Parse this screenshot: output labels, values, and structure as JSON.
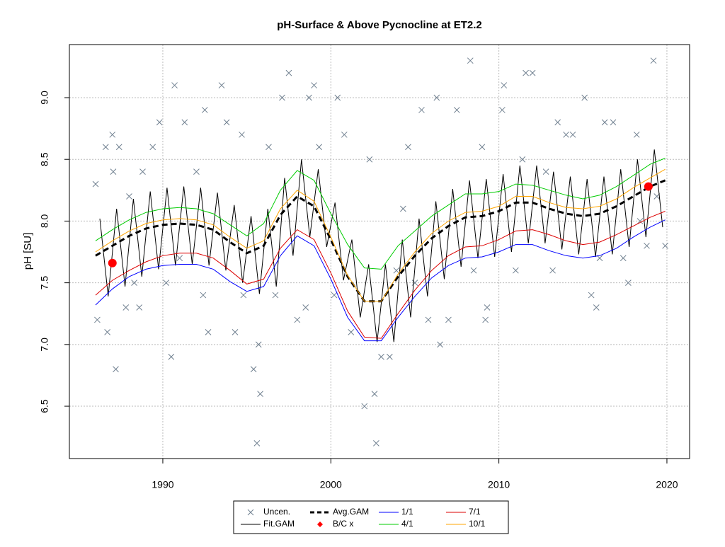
{
  "chart_data": {
    "type": "line",
    "title": "pH-Surface & Above Pycnocline at ET2.2",
    "y_label": "pH [SU]",
    "xlim": [
      1984.44,
      2021.35
    ],
    "ylim": [
      6.076,
      9.43
    ],
    "xticks": [
      1990,
      2000,
      2010,
      2020
    ],
    "yticks": [
      6.5,
      {
        "value": 7,
        "label": "7.0"
      },
      7.5,
      {
        "value": 8,
        "label": "8.0"
      },
      8.5,
      {
        "value": 9,
        "label": "9.0"
      }
    ],
    "grid": true,
    "legend": "bottom",
    "x": [
      1986,
      1987,
      1988,
      1989,
      1990,
      1991,
      1992,
      1993,
      1994,
      1995,
      1996,
      1997,
      1998,
      1999,
      2000,
      2001,
      2002,
      2003,
      2004,
      2005,
      2006,
      2007,
      2008,
      2009,
      2010,
      2011,
      2012,
      2013,
      2014,
      2015,
      2016,
      2017,
      2018,
      2019,
      2019.9
    ],
    "series": [
      {
        "name": "Uncen.",
        "color": "#708090",
        "marker": "x",
        "x": [
          1986.0,
          1986.1,
          1986.6,
          1986.7,
          1987.0,
          1987.05,
          1987.2,
          1987.4,
          1987.8,
          1988.0,
          1988.3,
          1988.8,
          1989.4,
          1989.8,
          1990.5,
          1990.7,
          1991.0,
          1991.3,
          1992.0,
          1992.5,
          1992.7,
          1993.5,
          1993.8,
          1994.3,
          1994.7,
          1995.6,
          1995.4,
          1995.7,
          1995.8,
          1996.3,
          1997.1,
          1997.5,
          1998.0,
          1998.5,
          1998.7,
          1999.0,
          1999.3,
          2000.4,
          2000.8,
          2001.2,
          2002.0,
          2002.3,
          2002.6,
          2002.7,
          2003.0,
          2003.5,
          2004.3,
          2004.6,
          2005.4,
          2005.8,
          2006.3,
          2006.5,
          2007.0,
          2007.5,
          2008.3,
          2009.0,
          2009.3,
          2009.2,
          2010.2,
          2010.3,
          2011.4,
          2011.6,
          2012.0,
          2012.8,
          2013.5,
          2014.0,
          2014.4,
          2015.1,
          2015.5,
          2015.8,
          2016.3,
          2016.8,
          2017.4,
          2017.7,
          2018.2,
          2018.8,
          2019.2,
          2019.4,
          2019.9,
          1988.6,
          1990.2,
          1992.4,
          1994.8,
          1996.7,
          2000.2,
          2003.9,
          2005.0,
          2008.5,
          2011.0,
          2013.2,
          2016.0,
          2018.4
        ],
        "values": [
          8.3,
          7.2,
          8.6,
          7.1,
          8.7,
          8.4,
          6.8,
          8.6,
          7.3,
          8.2,
          7.5,
          8.4,
          8.6,
          8.8,
          6.9,
          9.1,
          7.7,
          8.8,
          8.4,
          8.9,
          7.1,
          9.1,
          8.8,
          7.1,
          8.7,
          6.2,
          6.8,
          7.0,
          6.6,
          8.6,
          9.0,
          9.2,
          7.2,
          7.3,
          9.0,
          9.1,
          8.6,
          9.0,
          8.7,
          7.1,
          6.5,
          8.5,
          6.6,
          6.2,
          6.9,
          6.9,
          8.1,
          8.6,
          8.9,
          7.2,
          9.0,
          7.0,
          7.2,
          8.9,
          9.3,
          8.6,
          7.3,
          7.2,
          8.9,
          9.1,
          8.5,
          9.2,
          9.2,
          8.4,
          8.8,
          8.7,
          8.7,
          9.0,
          7.4,
          7.3,
          8.8,
          8.8,
          7.7,
          7.5,
          8.7,
          7.8,
          9.3,
          8.2,
          7.8,
          7.3,
          7.5,
          7.4,
          7.4,
          7.4,
          7.4,
          7.6,
          7.5,
          7.6,
          7.6,
          7.6,
          7.7,
          8.0
        ]
      },
      {
        "name": "Fit.GAM",
        "color": "#000000",
        "x": [
          1986.25,
          1986.75,
          1987.25,
          1987.75,
          1988.25,
          1988.75,
          1989.25,
          1989.75,
          1990.25,
          1990.75,
          1991.25,
          1991.75,
          1992.25,
          1992.75,
          1993.25,
          1993.75,
          1994.25,
          1994.75,
          1995.25,
          1995.75,
          1996.25,
          1996.75,
          1997.25,
          1997.75,
          1998.25,
          1998.75,
          1999.25,
          1999.75,
          2000.25,
          2000.75,
          2001.25,
          2001.75,
          2002.25,
          2002.75,
          2003.25,
          2003.75,
          2004.25,
          2004.75,
          2005.25,
          2005.75,
          2006.25,
          2006.75,
          2007.25,
          2007.75,
          2008.25,
          2008.75,
          2009.25,
          2009.75,
          2010.25,
          2010.75,
          2011.25,
          2011.75,
          2012.25,
          2012.75,
          2013.25,
          2013.75,
          2014.25,
          2014.75,
          2015.25,
          2015.75,
          2016.25,
          2016.75,
          2017.25,
          2017.75,
          2018.25,
          2018.75,
          2019.25,
          2019.75
        ],
        "values": [
          8.02,
          7.39,
          8.1,
          7.47,
          8.18,
          7.55,
          8.24,
          7.61,
          8.27,
          7.64,
          8.28,
          7.65,
          8.27,
          7.64,
          8.23,
          7.6,
          8.13,
          7.5,
          8.04,
          7.41,
          8.1,
          7.47,
          8.35,
          7.72,
          8.5,
          7.87,
          8.42,
          7.79,
          8.15,
          7.52,
          7.85,
          7.22,
          7.65,
          7.02,
          7.65,
          7.02,
          7.85,
          7.22,
          8.02,
          7.39,
          8.16,
          7.53,
          8.26,
          7.63,
          8.33,
          7.7,
          8.34,
          7.71,
          8.38,
          7.75,
          8.45,
          7.82,
          8.45,
          7.82,
          8.4,
          7.77,
          8.36,
          7.73,
          8.34,
          7.71,
          8.36,
          7.73,
          8.42,
          7.79,
          8.5,
          7.87,
          8.58,
          7.95
        ]
      },
      {
        "name": "Avg.GAM",
        "color": "#000000",
        "dashed": true,
        "width": 3,
        "values": [
          7.72,
          7.8,
          7.88,
          7.94,
          7.97,
          7.98,
          7.97,
          7.93,
          7.83,
          7.74,
          7.8,
          8.05,
          8.2,
          8.12,
          7.85,
          7.55,
          7.35,
          7.35,
          7.55,
          7.72,
          7.86,
          7.96,
          8.03,
          8.04,
          8.08,
          8.15,
          8.15,
          8.1,
          8.06,
          8.04,
          8.06,
          8.12,
          8.2,
          8.28,
          8.33
        ]
      },
      {
        "name": "B/C x",
        "color": "#ff0000",
        "marker": "dot",
        "x": [
          1987.0,
          2018.9
        ],
        "values": [
          7.66,
          8.28
        ]
      },
      {
        "name": "1/1",
        "color": "#0000ff",
        "values": [
          7.32,
          7.45,
          7.55,
          7.61,
          7.64,
          7.65,
          7.65,
          7.61,
          7.51,
          7.43,
          7.47,
          7.72,
          7.88,
          7.8,
          7.53,
          7.22,
          7.03,
          7.03,
          7.22,
          7.39,
          7.54,
          7.64,
          7.7,
          7.71,
          7.75,
          7.81,
          7.81,
          7.76,
          7.72,
          7.7,
          7.72,
          7.78,
          7.87,
          7.95,
          8.01
        ]
      },
      {
        "name": "4/1",
        "color": "#00cc00",
        "values": [
          7.84,
          7.93,
          8.01,
          8.07,
          8.1,
          8.11,
          8.1,
          8.06,
          7.97,
          7.88,
          7.98,
          8.25,
          8.41,
          8.33,
          8.06,
          7.81,
          7.62,
          7.61,
          7.8,
          7.92,
          8.04,
          8.13,
          8.22,
          8.22,
          8.24,
          8.3,
          8.29,
          8.25,
          8.21,
          8.18,
          8.21,
          8.28,
          8.37,
          8.46,
          8.51
        ]
      },
      {
        "name": "7/1",
        "color": "#dd0000",
        "values": [
          7.4,
          7.52,
          7.6,
          7.67,
          7.72,
          7.74,
          7.74,
          7.7,
          7.6,
          7.49,
          7.53,
          7.78,
          7.93,
          7.85,
          7.58,
          7.27,
          7.06,
          7.05,
          7.25,
          7.44,
          7.6,
          7.72,
          7.79,
          7.8,
          7.85,
          7.92,
          7.93,
          7.89,
          7.84,
          7.81,
          7.83,
          7.89,
          7.96,
          8.03,
          8.08
        ]
      },
      {
        "name": "10/1",
        "color": "#ffa500",
        "values": [
          7.75,
          7.84,
          7.92,
          7.98,
          8.01,
          8.02,
          8.01,
          7.97,
          7.87,
          7.78,
          7.84,
          8.1,
          8.25,
          8.16,
          7.87,
          7.56,
          7.35,
          7.35,
          7.57,
          7.75,
          7.9,
          8.0,
          8.07,
          8.08,
          8.12,
          8.2,
          8.2,
          8.15,
          8.11,
          8.1,
          8.12,
          8.18,
          8.27,
          8.35,
          8.42
        ]
      }
    ]
  }
}
